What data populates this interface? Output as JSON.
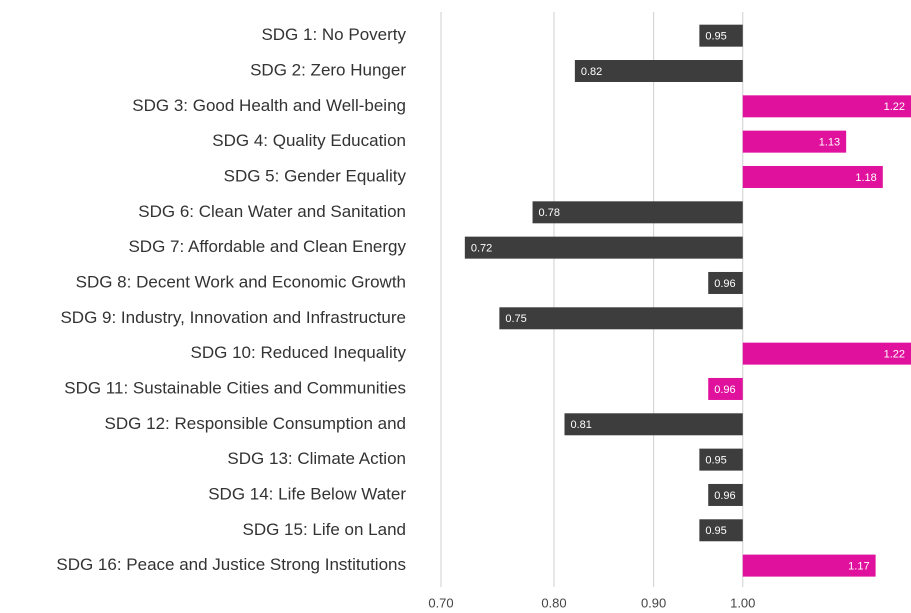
{
  "chart_data": {
    "type": "bar",
    "orientation": "horizontal",
    "log_scale": true,
    "baseline": 1,
    "categories": [
      "SDG 1: No Poverty",
      "SDG 2: Zero Hunger",
      "SDG 3: Good Health and Well-being",
      "SDG 4: Quality Education",
      "SDG 5: Gender Equality",
      "SDG 6: Clean Water and Sanitation",
      "SDG 7: Affordable and Clean Energy",
      "SDG 8: Decent Work and Economic Growth",
      "SDG 9: Industry, Innovation and Infrastructure",
      "SDG 10: Reduced Inequality",
      "SDG 11: Sustainable Cities and Communities",
      "SDG 12: Responsible Consumption and",
      "SDG 13: Climate Action",
      "SDG 14: Life Below Water",
      "SDG 15: Life on Land",
      "SDG 16: Peace and Justice Strong Institutions"
    ],
    "values": [
      0.95,
      0.82,
      1.22,
      1.13,
      1.18,
      0.78,
      0.72,
      0.96,
      0.75,
      1.22,
      0.96,
      0.81,
      0.95,
      0.96,
      0.95,
      1.17
    ],
    "colors": [
      "#3d3d3d",
      "#3d3d3d",
      "#e0119d",
      "#e0119d",
      "#e0119d",
      "#3d3d3d",
      "#3d3d3d",
      "#3d3d3d",
      "#3d3d3d",
      "#e0119d",
      "#e0119d",
      "#3d3d3d",
      "#3d3d3d",
      "#3d3d3d",
      "#3d3d3d",
      "#e0119d"
    ],
    "xlim": [
      0.7,
      1.22
    ],
    "xticks": [
      {
        "value": 0.7,
        "label": "0.70"
      },
      {
        "value": 0.8,
        "label": "0.80"
      },
      {
        "value": 0.9,
        "label": "0.90"
      },
      {
        "value": 1,
        "label": "1.00"
      }
    ],
    "grid": true
  }
}
